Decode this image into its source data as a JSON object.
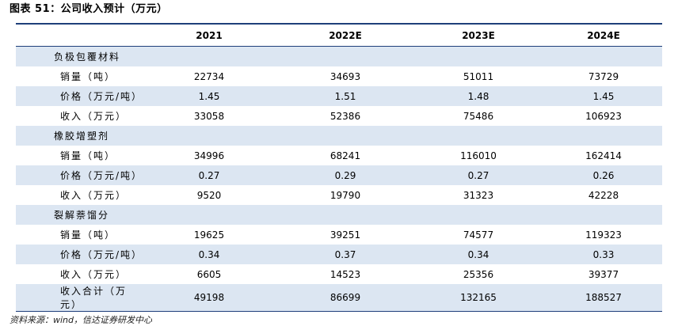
{
  "title": "图表 51：公司收入预计（万元）",
  "headers": [
    "",
    "2021",
    "2022E",
    "2023E",
    "2024E"
  ],
  "rows": [
    {
      "label": "负极包覆材料",
      "level": 1,
      "values": [
        "",
        "",
        "",
        ""
      ]
    },
    {
      "label": "销量（吨）",
      "level": 2,
      "values": [
        "22734",
        "34693",
        "51011",
        "73729"
      ]
    },
    {
      "label": "价格（万元/吨）",
      "level": 2,
      "values": [
        "1.45",
        "1.51",
        "1.48",
        "1.45"
      ]
    },
    {
      "label": "收入（万元）",
      "level": 2,
      "values": [
        "33058",
        "52386",
        "75486",
        "106923"
      ]
    },
    {
      "label": "橡胶增塑剂",
      "level": 1,
      "values": [
        "",
        "",
        "",
        ""
      ]
    },
    {
      "label": "销量（吨）",
      "level": 2,
      "values": [
        "34996",
        "68241",
        "116010",
        "162414"
      ]
    },
    {
      "label": "价格（万元/吨）",
      "level": 2,
      "values": [
        "0.27",
        "0.29",
        "0.27",
        "0.26"
      ]
    },
    {
      "label": "收入（万元）",
      "level": 2,
      "values": [
        "9520",
        "19790",
        "31323",
        "42228"
      ]
    },
    {
      "label": "裂解萘馏分",
      "level": 1,
      "values": [
        "",
        "",
        "",
        ""
      ]
    },
    {
      "label": "销量（吨）",
      "level": 2,
      "values": [
        "19625",
        "39251",
        "74577",
        "119323"
      ]
    },
    {
      "label": "价格（万元/吨）",
      "level": 2,
      "values": [
        "0.34",
        "0.37",
        "0.34",
        "0.33"
      ]
    },
    {
      "label": "收入（万元）",
      "level": 2,
      "values": [
        "6605",
        "14523",
        "25356",
        "39377"
      ]
    },
    {
      "label": "收入合计（万元）",
      "level": 0,
      "values": [
        "49198",
        "86699",
        "132165",
        "188527"
      ]
    }
  ],
  "source": "资料来源：wind，信达证券研发中心"
}
